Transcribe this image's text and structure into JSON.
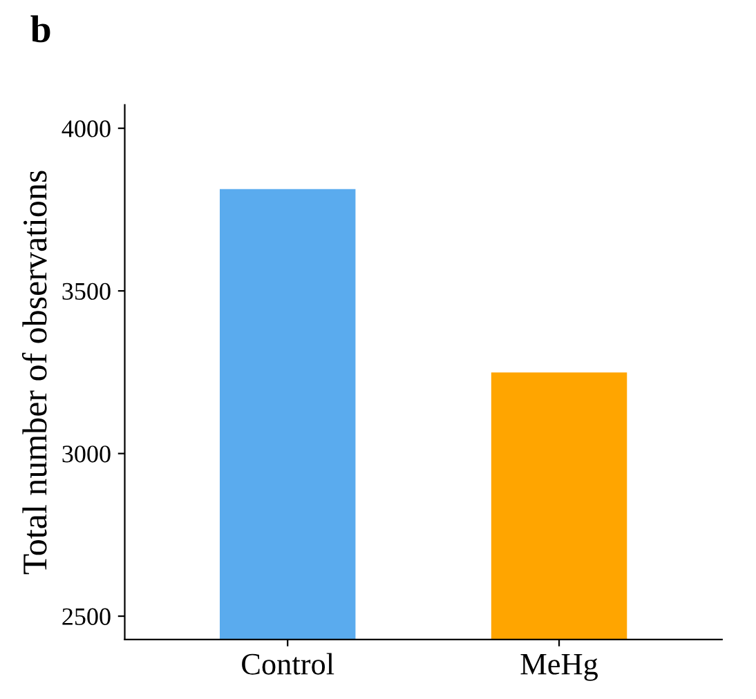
{
  "chart_data": {
    "type": "bar",
    "title": "b",
    "ylabel": "Total number of observations",
    "categories": [
      "Control",
      "MeHg"
    ],
    "series": [
      {
        "colors": [
          "#5aabee",
          "#ffa500"
        ],
        "values": [
          3813,
          3249
        ]
      }
    ],
    "ylim": [
      2428,
      4072
    ],
    "yticks": [
      2500,
      3000,
      3500,
      4000
    ],
    "grid": false
  }
}
